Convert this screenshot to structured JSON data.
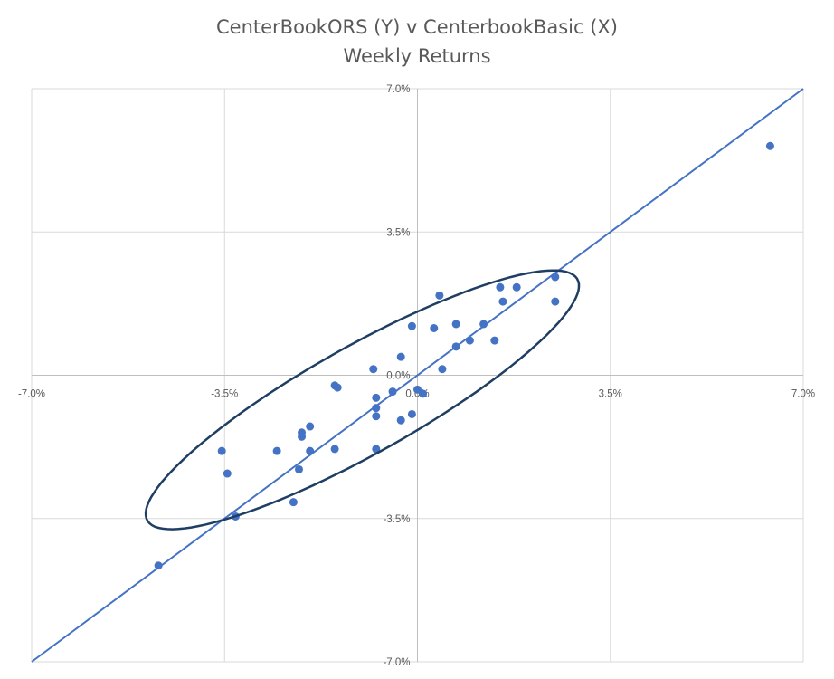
{
  "chart": {
    "title_line1": "CenterBookORS (Y) v CenterbookBasic (X)",
    "title_line2": "Weekly Returns"
  },
  "colors": {
    "points": "#4472C4",
    "trendline": "#4472C4",
    "ellipse": "#1F3E63",
    "gridlines": "#D9D9D9",
    "axis": "#BFBFBF",
    "labels": "#595959"
  },
  "chart_data": {
    "type": "scatter",
    "title": "CenterBookORS (Y) v CenterbookBasic (X)",
    "subtitle": "Weekly Returns",
    "xlabel": "",
    "ylabel": "",
    "xlim": [
      -7.0,
      7.0
    ],
    "ylim": [
      -7.0,
      7.0
    ],
    "units": "%",
    "x_ticks": [
      "-7.0%",
      "-3.5%",
      "0.0%",
      "3.5%",
      "7.0%"
    ],
    "y_ticks": [
      "7.0%",
      "3.5%",
      "0.0%",
      "-3.5%",
      "-7.0%"
    ],
    "grid": true,
    "legend": "none",
    "points": [
      {
        "x": 6.4,
        "y": 5.6
      },
      {
        "x": 2.5,
        "y": 2.4
      },
      {
        "x": 2.5,
        "y": 1.8
      },
      {
        "x": 1.8,
        "y": 2.15
      },
      {
        "x": 1.5,
        "y": 2.15
      },
      {
        "x": 1.55,
        "y": 1.8
      },
      {
        "x": 1.2,
        "y": 1.25
      },
      {
        "x": 1.4,
        "y": 0.85
      },
      {
        "x": 0.95,
        "y": 0.85
      },
      {
        "x": 0.7,
        "y": 1.25
      },
      {
        "x": 0.7,
        "y": 0.7
      },
      {
        "x": 0.4,
        "y": 1.95
      },
      {
        "x": 0.3,
        "y": 1.15
      },
      {
        "x": -0.1,
        "y": 1.2
      },
      {
        "x": -0.3,
        "y": 0.45
      },
      {
        "x": 0.45,
        "y": 0.15
      },
      {
        "x": -0.8,
        "y": 0.15
      },
      {
        "x": -1.5,
        "y": -0.25
      },
      {
        "x": -1.45,
        "y": -0.3
      },
      {
        "x": -0.45,
        "y": -0.4
      },
      {
        "x": -0.75,
        "y": -0.55
      },
      {
        "x": -0.75,
        "y": -0.8
      },
      {
        "x": -0.75,
        "y": -1.0
      },
      {
        "x": -0.1,
        "y": -0.95
      },
      {
        "x": -0.3,
        "y": -1.1
      },
      {
        "x": 0.0,
        "y": -0.35
      },
      {
        "x": 0.1,
        "y": -0.45
      },
      {
        "x": -1.95,
        "y": -1.25
      },
      {
        "x": -2.1,
        "y": -1.4
      },
      {
        "x": -2.1,
        "y": -1.5
      },
      {
        "x": -2.55,
        "y": -1.85
      },
      {
        "x": -1.95,
        "y": -1.85
      },
      {
        "x": -1.5,
        "y": -1.8
      },
      {
        "x": -0.75,
        "y": -1.8
      },
      {
        "x": -2.15,
        "y": -2.3
      },
      {
        "x": -3.55,
        "y": -1.85
      },
      {
        "x": -3.45,
        "y": -2.4
      },
      {
        "x": -2.25,
        "y": -3.1
      },
      {
        "x": -3.3,
        "y": -3.45
      },
      {
        "x": -4.7,
        "y": -4.65
      }
    ],
    "trendline": {
      "from": [
        -7.0,
        -7.0
      ],
      "to": [
        7.0,
        7.0
      ]
    },
    "annotation_ellipse": {
      "center": [
        -1.0,
        -0.6
      ],
      "semi_major": 4.9,
      "semi_minor": 1.2,
      "angle_deg": 38
    }
  }
}
